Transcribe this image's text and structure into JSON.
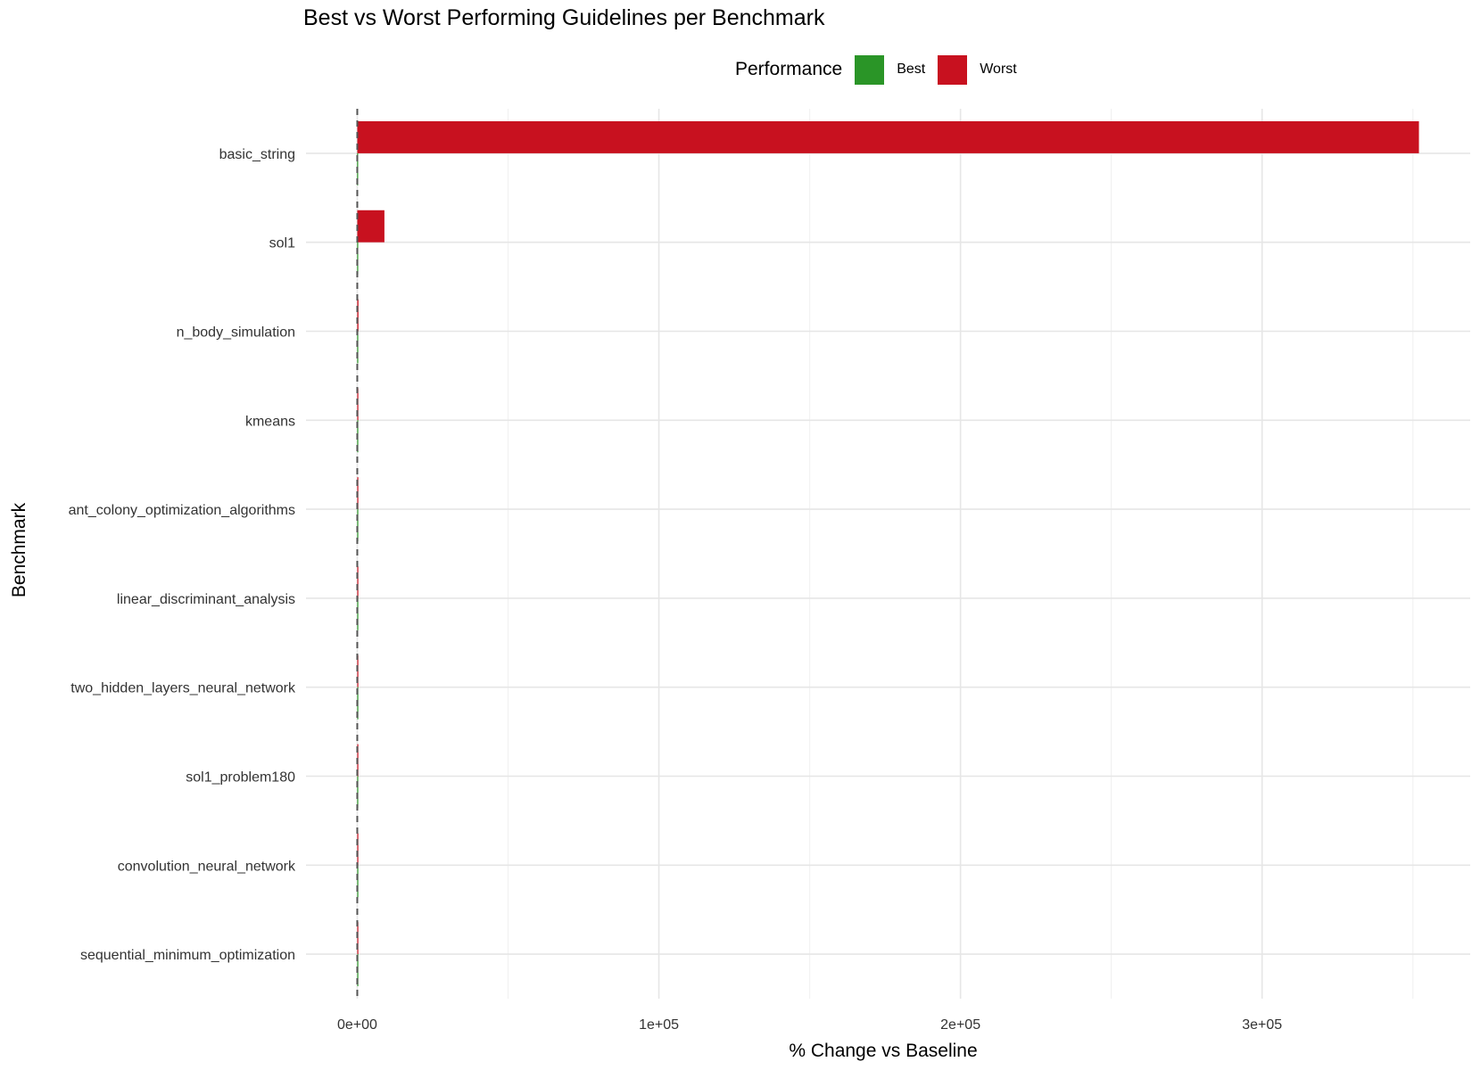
{
  "chart_data": {
    "type": "bar",
    "orientation": "horizontal",
    "title": "Best vs Worst Performing Guidelines per Benchmark",
    "xlabel": "% Change vs Baseline",
    "ylabel": "Benchmark",
    "categories": [
      "basic_string",
      "sol1",
      "n_body_simulation",
      "kmeans",
      "ant_colony_optimization_algorithms",
      "linear_discriminant_analysis",
      "two_hidden_layers_neural_network",
      "sol1_problem180",
      "convolution_neural_network",
      "sequential_minimum_optimization"
    ],
    "series": [
      {
        "name": "Best",
        "color": "#2a9527",
        "values": [
          -60,
          -40,
          -30,
          -25,
          -20,
          -15,
          -10,
          -30,
          -10,
          -5
        ]
      },
      {
        "name": "Worst",
        "color": "#c8111f",
        "values": [
          352000,
          9000,
          400,
          350,
          60,
          30,
          20,
          300,
          20,
          10
        ]
      }
    ],
    "xlim": [
      -17000,
      369000
    ],
    "xticks": [
      0,
      100000,
      200000,
      300000
    ],
    "xtick_labels": [
      "0e+00",
      "1e+05",
      "2e+05",
      "3e+05"
    ],
    "reference_line": {
      "x": 0,
      "style": "dashed"
    },
    "legend": {
      "title": "Performance",
      "position": "top"
    },
    "grid": true
  }
}
